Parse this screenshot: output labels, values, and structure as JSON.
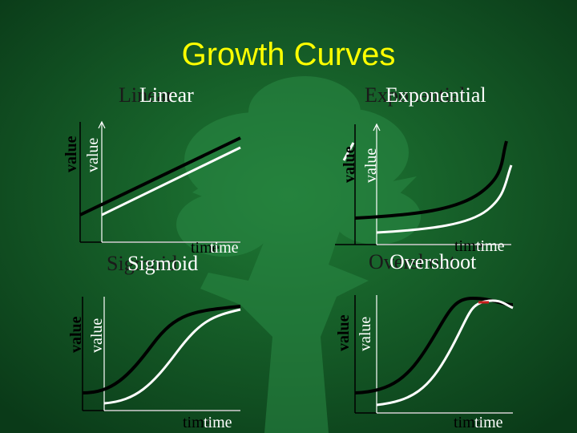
{
  "title": "Growth Curves",
  "panels": {
    "linear": {
      "heading": "Linear",
      "ylabel": "value",
      "xlabel": "time"
    },
    "exponential": {
      "heading": "Exponential",
      "ylabel": "value",
      "xlabel": "time"
    },
    "sigmoid": {
      "heading": "Sigmoid",
      "ylabel": "value",
      "xlabel": "time"
    },
    "overshoot": {
      "heading": "Overshoot",
      "ylabel": "value",
      "xlabel": "time"
    }
  },
  "colors": {
    "background_center": "#1f7a35",
    "background_edge": "#0a3a18",
    "title": "#ffff00",
    "curve_dark": "#000000",
    "curve_light": "#ffffff",
    "accent_red": "#c81e1e"
  }
}
